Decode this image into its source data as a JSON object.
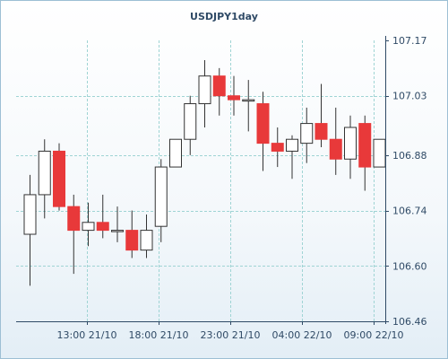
{
  "chart_data": {
    "type": "candlestick",
    "title": "USDJPY1day",
    "y_ticks": [
      "106.46",
      "106.60",
      "106.74",
      "106.88",
      "107.03",
      "107.17"
    ],
    "ylim": [
      106.46,
      107.17
    ],
    "x_ticks": [
      "13:00 21/10",
      "18:00 21/10",
      "23:00 21/10",
      "04:00 22/10",
      "09:00 22/10"
    ],
    "grid": true,
    "colors": {
      "up": "#ffffff",
      "down": "#e8393a",
      "wick": "#333333",
      "grid": "#9fd4d4",
      "axis": "#2f4a66"
    },
    "candles": [
      {
        "open": 106.68,
        "high": 106.83,
        "low": 106.55,
        "close": 106.78
      },
      {
        "open": 106.78,
        "high": 106.92,
        "low": 106.72,
        "close": 106.89
      },
      {
        "open": 106.89,
        "high": 106.91,
        "low": 106.74,
        "close": 106.75
      },
      {
        "open": 106.75,
        "high": 106.78,
        "low": 106.58,
        "close": 106.69
      },
      {
        "open": 106.69,
        "high": 106.76,
        "low": 106.65,
        "close": 106.71
      },
      {
        "open": 106.71,
        "high": 106.78,
        "low": 106.67,
        "close": 106.69
      },
      {
        "open": 106.69,
        "high": 106.75,
        "low": 106.66,
        "close": 106.69
      },
      {
        "open": 106.69,
        "high": 106.74,
        "low": 106.62,
        "close": 106.64
      },
      {
        "open": 106.64,
        "high": 106.73,
        "low": 106.62,
        "close": 106.69
      },
      {
        "open": 106.7,
        "high": 106.87,
        "low": 106.66,
        "close": 106.85
      },
      {
        "open": 106.85,
        "high": 106.92,
        "low": 106.85,
        "close": 106.92
      },
      {
        "open": 106.92,
        "high": 107.03,
        "low": 106.88,
        "close": 107.01
      },
      {
        "open": 107.01,
        "high": 107.12,
        "low": 106.95,
        "close": 107.08
      },
      {
        "open": 107.08,
        "high": 107.1,
        "low": 106.98,
        "close": 107.03
      },
      {
        "open": 107.03,
        "high": 107.08,
        "low": 106.98,
        "close": 107.02
      },
      {
        "open": 107.02,
        "high": 107.07,
        "low": 106.94,
        "close": 107.02
      },
      {
        "open": 107.01,
        "high": 107.04,
        "low": 106.84,
        "close": 106.91
      },
      {
        "open": 106.91,
        "high": 106.95,
        "low": 106.85,
        "close": 106.89
      },
      {
        "open": 106.89,
        "high": 106.93,
        "low": 106.82,
        "close": 106.92
      },
      {
        "open": 106.91,
        "high": 107.0,
        "low": 106.86,
        "close": 106.96
      },
      {
        "open": 106.96,
        "high": 107.06,
        "low": 106.9,
        "close": 106.92
      },
      {
        "open": 106.92,
        "high": 107.0,
        "low": 106.83,
        "close": 106.87
      },
      {
        "open": 106.87,
        "high": 106.98,
        "low": 106.82,
        "close": 106.95
      },
      {
        "open": 106.96,
        "high": 106.98,
        "low": 106.79,
        "close": 106.85
      },
      {
        "open": 106.85,
        "high": 106.92,
        "low": 106.85,
        "close": 106.92
      }
    ]
  }
}
